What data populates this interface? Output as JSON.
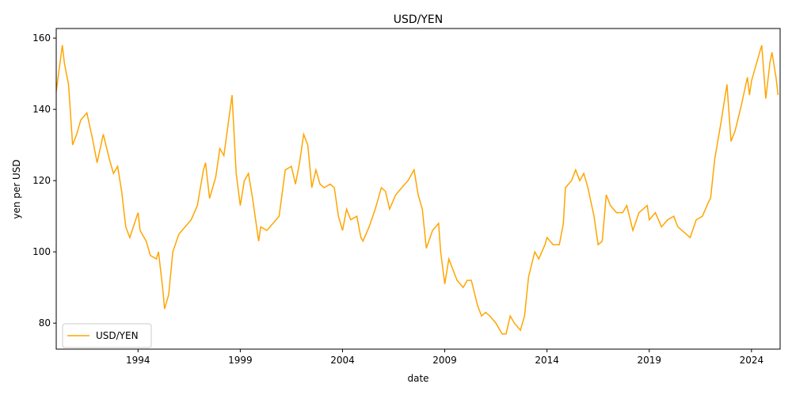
{
  "chart_data": {
    "type": "line",
    "title": "USD/YEN",
    "xlabel": "date",
    "ylabel": "yen per USD",
    "legend": "lower left",
    "xlim": [
      1990,
      2025.4
    ],
    "ylim": [
      72.7,
      162.7
    ],
    "xticks": [
      1994,
      1999,
      2004,
      2009,
      2014,
      2019,
      2024
    ],
    "yticks": [
      80,
      100,
      120,
      140,
      160
    ],
    "series": [
      {
        "name": "USD/YEN",
        "color": "#ffa500",
        "x": [
          1990.0,
          1990.3,
          1990.4,
          1990.6,
          1990.8,
          1991.0,
          1991.2,
          1991.5,
          1991.8,
          1992.0,
          1992.3,
          1992.6,
          1992.8,
          1993.0,
          1993.2,
          1993.4,
          1993.6,
          1994.0,
          1994.1,
          1994.4,
          1994.6,
          1994.9,
          1995.0,
          1995.2,
          1995.3,
          1995.5,
          1995.7,
          1996.0,
          1996.3,
          1996.6,
          1996.9,
          1997.2,
          1997.3,
          1997.5,
          1997.8,
          1998.0,
          1998.2,
          1998.6,
          1998.8,
          1999.0,
          1999.2,
          1999.4,
          1999.6,
          1999.9,
          2000.0,
          2000.3,
          2000.6,
          2000.9,
          2001.2,
          2001.5,
          2001.7,
          2001.9,
          2002.1,
          2002.3,
          2002.5,
          2002.7,
          2002.9,
          2003.1,
          2003.4,
          2003.6,
          2003.8,
          2004.0,
          2004.2,
          2004.4,
          2004.7,
          2004.9,
          2005.0,
          2005.3,
          2005.6,
          2005.9,
          2006.1,
          2006.3,
          2006.6,
          2006.9,
          2007.2,
          2007.5,
          2007.7,
          2007.9,
          2008.1,
          2008.4,
          2008.7,
          2008.8,
          2009.0,
          2009.2,
          2009.4,
          2009.6,
          2009.9,
          2010.1,
          2010.3,
          2010.6,
          2010.8,
          2011.0,
          2011.2,
          2011.5,
          2011.8,
          2012.0,
          2012.2,
          2012.4,
          2012.7,
          2012.9,
          2013.1,
          2013.4,
          2013.6,
          2013.9,
          2014.0,
          2014.3,
          2014.6,
          2014.8,
          2014.9,
          2015.2,
          2015.4,
          2015.6,
          2015.8,
          2016.0,
          2016.3,
          2016.5,
          2016.7,
          2016.9,
          2017.1,
          2017.4,
          2017.7,
          2017.9,
          2018.2,
          2018.5,
          2018.9,
          2019.0,
          2019.3,
          2019.6,
          2019.9,
          2020.2,
          2020.4,
          2020.8,
          2021.0,
          2021.3,
          2021.6,
          2021.9,
          2022.0,
          2022.2,
          2022.5,
          2022.8,
          2023.0,
          2023.2,
          2023.5,
          2023.8,
          2023.9,
          2024.0,
          2024.3,
          2024.5,
          2024.7,
          2024.9,
          2025.0,
          2025.2,
          2025.3
        ],
        "values": [
          145,
          158,
          153,
          147,
          130,
          133,
          137,
          139,
          131,
          125,
          133,
          126,
          122,
          124,
          117,
          107,
          104,
          111,
          106,
          103,
          99,
          98,
          100,
          90,
          84,
          88,
          100,
          105,
          107,
          109,
          113,
          123,
          125,
          115,
          121,
          129,
          127,
          144,
          122,
          113,
          120,
          122,
          115,
          103,
          107,
          106,
          108,
          110,
          123,
          124,
          119,
          125,
          133,
          130,
          118,
          123,
          119,
          118,
          119,
          118,
          110,
          106,
          112,
          109,
          110,
          104,
          103,
          107,
          112,
          118,
          117,
          112,
          116,
          118,
          120,
          123,
          116,
          112,
          101,
          106,
          108,
          100,
          91,
          98,
          95,
          92,
          90,
          92,
          92,
          85,
          82,
          83,
          82,
          80,
          77,
          77,
          82,
          80,
          78,
          82,
          93,
          100,
          98,
          102,
          104,
          102,
          102,
          108,
          118,
          120,
          123,
          120,
          122,
          118,
          110,
          102,
          103,
          116,
          113,
          111,
          111,
          113,
          106,
          111,
          113,
          109,
          111,
          107,
          109,
          110,
          107,
          105,
          104,
          109,
          110,
          114,
          115,
          126,
          136,
          147,
          131,
          134,
          141,
          149,
          144,
          148,
          154,
          158,
          143,
          153,
          156,
          149,
          144
        ]
      }
    ]
  }
}
